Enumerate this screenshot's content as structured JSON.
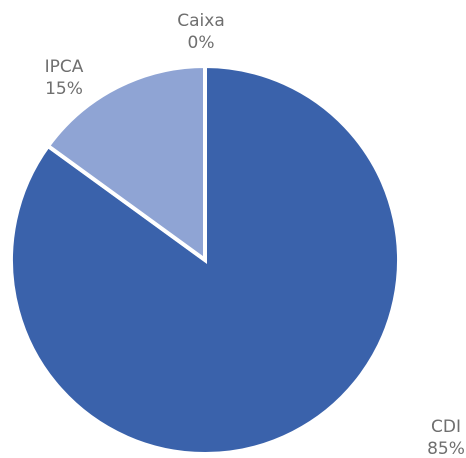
{
  "chart_data": {
    "type": "pie",
    "categories": [
      "CDI",
      "IPCA",
      "Caixa"
    ],
    "values": [
      85,
      15,
      0
    ],
    "value_labels": [
      "85%",
      "15%",
      "0%"
    ],
    "colors": [
      "#3a62ab",
      "#8fa4d4",
      "#b9c7e6"
    ]
  }
}
